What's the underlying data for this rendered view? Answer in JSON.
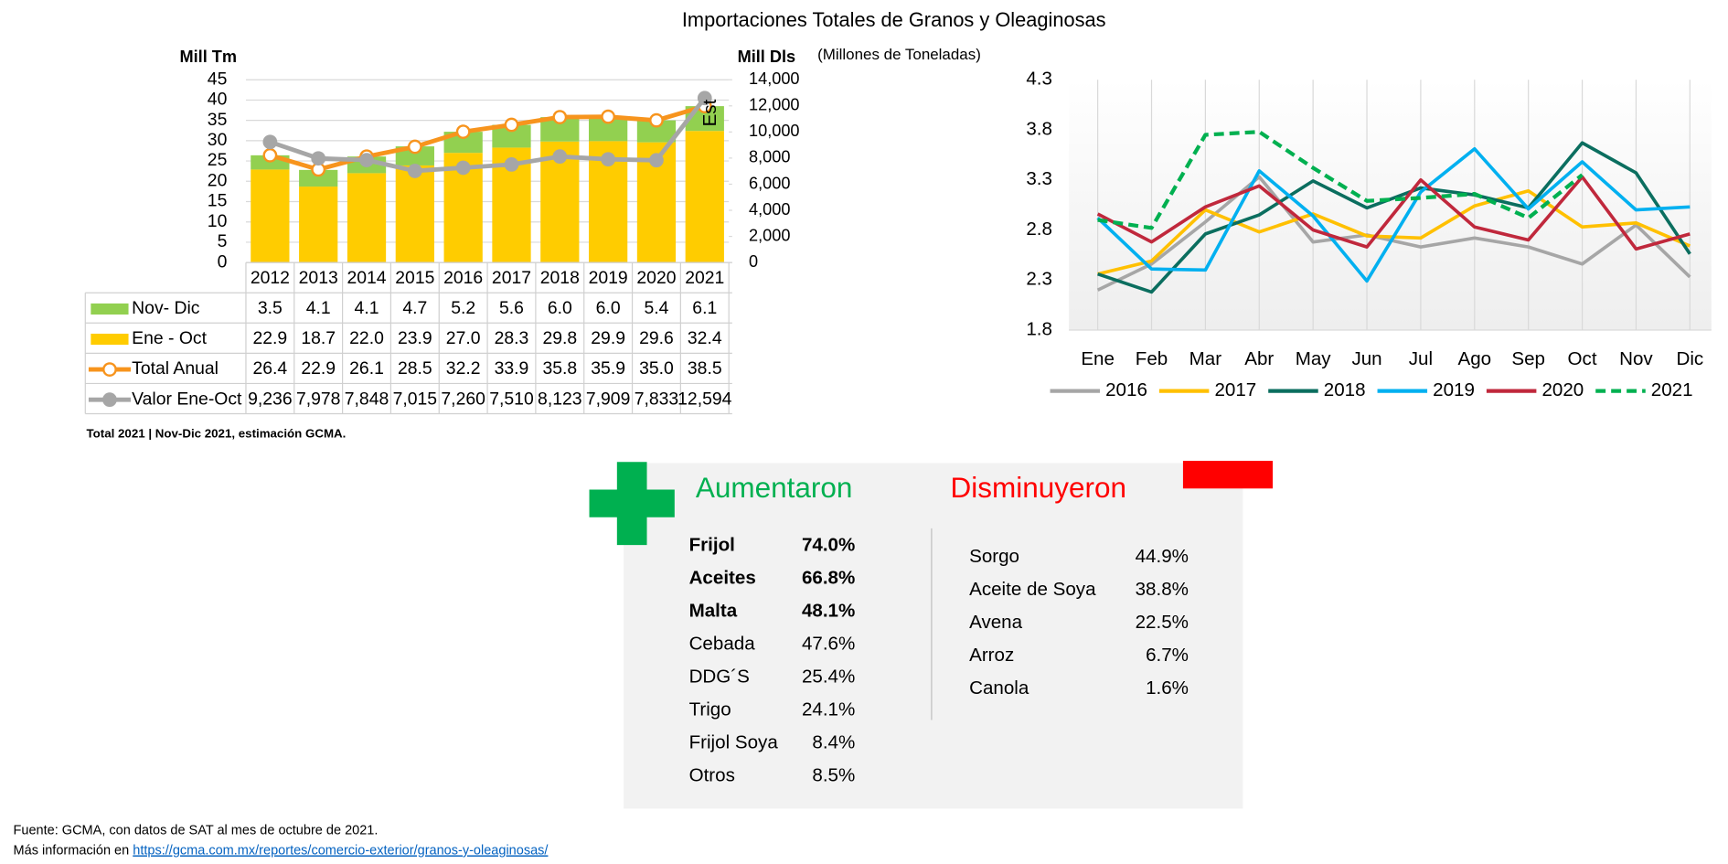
{
  "title": "Importaciones Totales de Granos y Oleaginosas",
  "chart_data": [
    {
      "type": "combo",
      "stacked": true,
      "ylabel": "Mill Tm",
      "y2label": "Mill Dls",
      "categories": [
        "2012",
        "2013",
        "2014",
        "2015",
        "2016",
        "2017",
        "2018",
        "2019",
        "2020",
        "2021"
      ],
      "ylim": [
        0,
        45
      ],
      "yticks": [
        0,
        5,
        10,
        15,
        20,
        25,
        30,
        35,
        40,
        45
      ],
      "y2lim": [
        0,
        14000
      ],
      "y2ticks": [
        0,
        {
          "value": 2000,
          "label": "2,000"
        },
        {
          "value": 4000,
          "label": "4,000"
        },
        {
          "value": 6000,
          "label": "6,000"
        },
        {
          "value": 8000,
          "label": "8,000"
        },
        {
          "value": 10000,
          "label": "10,000"
        },
        {
          "value": 12000,
          "label": "12,000"
        },
        {
          "value": 14000,
          "label": "14,000"
        }
      ],
      "grid": true,
      "annotation": "Est",
      "series": [
        {
          "name": "Nov- Dic",
          "type": "bar",
          "color": "#92d050",
          "values": [
            3.5,
            4.1,
            4.1,
            4.7,
            5.2,
            5.6,
            6.0,
            6.0,
            5.4,
            6.1
          ],
          "value_labels": [
            "3.5",
            "4.1",
            "4.1",
            "4.7",
            "5.2",
            "5.6",
            "6.0",
            "6.0",
            "5.4",
            "6.1"
          ]
        },
        {
          "name": "Ene - Oct",
          "type": "bar",
          "color": "#ffcc00",
          "values": [
            22.9,
            18.7,
            22.0,
            23.9,
            27.0,
            28.3,
            29.8,
            29.9,
            29.6,
            32.4
          ],
          "value_labels": [
            "22.9",
            "18.7",
            "22.0",
            "23.9",
            "27.0",
            "28.3",
            "29.8",
            "29.9",
            "29.6",
            "32.4"
          ]
        },
        {
          "name": "Total Anual",
          "type": "line",
          "color": "#f7941d",
          "marker_fill": "#ffffff",
          "values": [
            26.4,
            22.9,
            26.1,
            28.5,
            32.2,
            33.9,
            35.8,
            35.9,
            35.0,
            38.5
          ],
          "value_labels": [
            "26.4",
            "22.9",
            "26.1",
            "28.5",
            "32.2",
            "33.9",
            "35.8",
            "35.9",
            "35.0",
            "38.5"
          ]
        },
        {
          "name": "Valor Ene-Oct",
          "type": "line",
          "axis": "y2",
          "color": "#a6a6a6",
          "marker_fill": "#a6a6a6",
          "values": [
            9236,
            7978,
            7848,
            7015,
            7260,
            7510,
            8123,
            7909,
            7833,
            12594
          ],
          "value_labels": [
            "9,236",
            "7,978",
            "7,848",
            "7,015",
            "7,260",
            "7,510",
            "8,123",
            "7,909",
            "7,833",
            "12,594"
          ]
        }
      ]
    },
    {
      "type": "line",
      "subtitle": "(Millones de Toneladas)",
      "categories": [
        "Ene",
        "Feb",
        "Mar",
        "Abr",
        "May",
        "Jun",
        "Jul",
        "Ago",
        "Sep",
        "Oct",
        "Nov",
        "Dic"
      ],
      "ylim": [
        1.8,
        4.3
      ],
      "yticks": [
        1.8,
        2.3,
        2.8,
        3.3,
        3.8,
        4.3
      ],
      "grid": true,
      "legend": "bottom",
      "series": [
        {
          "name": "2016",
          "color": "#a6a6a6",
          "values": [
            2.2,
            2.46,
            2.88,
            3.33,
            2.68,
            2.75,
            2.63,
            2.72,
            2.63,
            2.46,
            2.85,
            2.33
          ]
        },
        {
          "name": "2017",
          "color": "#ffc000",
          "values": [
            2.36,
            2.49,
            3.0,
            2.78,
            2.96,
            2.74,
            2.72,
            3.04,
            3.19,
            2.83,
            2.87,
            2.64
          ]
        },
        {
          "name": "2018",
          "color": "#0b6e5f",
          "values": [
            2.36,
            2.18,
            2.76,
            2.95,
            3.29,
            3.02,
            3.22,
            3.15,
            3.02,
            3.67,
            3.37,
            2.56
          ]
        },
        {
          "name": "2019",
          "color": "#00b0f0",
          "values": [
            2.92,
            2.41,
            2.4,
            3.39,
            2.94,
            2.29,
            3.18,
            3.61,
            3.01,
            3.48,
            3.0,
            3.03
          ]
        },
        {
          "name": "2020",
          "color": "#c0283c",
          "values": [
            2.96,
            2.68,
            3.03,
            3.24,
            2.8,
            2.63,
            3.3,
            2.83,
            2.7,
            3.33,
            2.61,
            2.76
          ]
        },
        {
          "name": "2021",
          "color": "#00b050",
          "dashed": true,
          "values": [
            2.9,
            2.82,
            3.75,
            3.78,
            3.42,
            3.09,
            3.12,
            3.16,
            2.92,
            3.35,
            null,
            null
          ]
        }
      ]
    }
  ],
  "note": "Total 2021 | Nov-Dic 2021, estimación GCMA.",
  "panel": {
    "increased_title": "Aumentaron",
    "decreased_title": "Disminuyeron",
    "increased": [
      [
        "Frijol",
        "74.0%"
      ],
      [
        "Aceites",
        "66.8%"
      ],
      [
        "Malta",
        "48.1%"
      ],
      [
        "Cebada",
        "47.6%"
      ],
      [
        "DDG´S",
        "25.4%"
      ],
      [
        "Trigo",
        "24.1%"
      ],
      [
        "Frijol Soya",
        "8.4%"
      ],
      [
        "Otros",
        "8.5%"
      ]
    ],
    "decreased": [
      [
        "Sorgo",
        "44.9%"
      ],
      [
        "Aceite de Soya",
        "38.8%"
      ],
      [
        "Avena",
        "22.5%"
      ],
      [
        "Arroz",
        "6.7%"
      ],
      [
        "Canola",
        "1.6%"
      ]
    ]
  },
  "footer": {
    "source": "Fuente: GCMA, con datos de SAT al mes de octubre de 2021.",
    "more_info": "Más información en",
    "link": "https://gcma.com.mx/reportes/comercio-exterior/granos-y-oleaginosas/"
  }
}
